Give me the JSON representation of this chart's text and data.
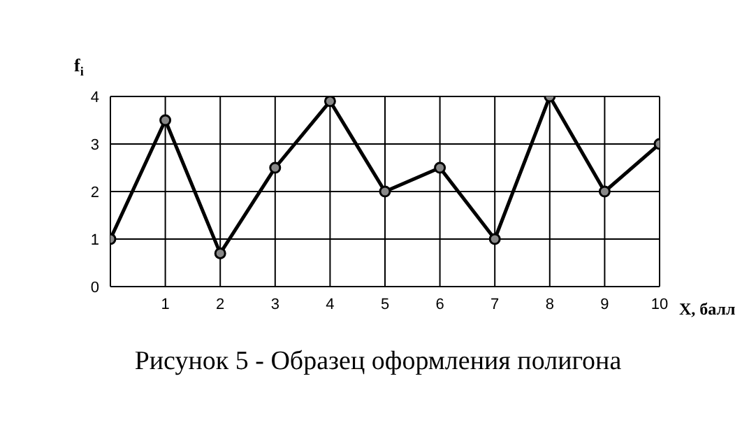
{
  "chart_data": {
    "type": "line",
    "title": "Рисунок 5 - Образец оформления полигона",
    "xlabel": "X, балл",
    "ylabel": "f$_{i}$",
    "x": [
      0,
      1,
      2,
      3,
      4,
      5,
      6,
      7,
      8,
      9,
      10
    ],
    "series": [
      {
        "color": "#000000",
        "values": [
          1,
          3.5,
          0.7,
          2.5,
          3.9,
          2,
          2.5,
          1,
          4,
          2,
          3
        ]
      }
    ],
    "xlim": [
      0,
      10
    ],
    "xticks": [
      {
        "value": 0,
        "label": null
      },
      1,
      2,
      3,
      4,
      5,
      6,
      7,
      8,
      9,
      10
    ],
    "ylim": [
      0,
      4
    ],
    "yticks": [
      0,
      1,
      2,
      3,
      4
    ],
    "grid": true,
    "legend": false,
    "marker": "circle",
    "line_style": "solid"
  }
}
